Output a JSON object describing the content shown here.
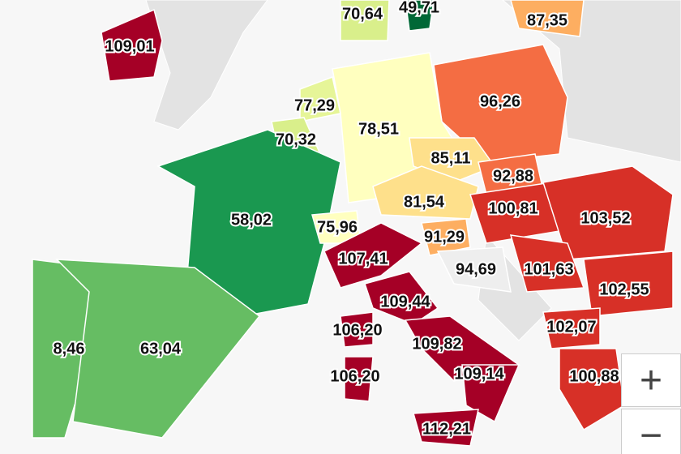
{
  "regions": [
    {
      "label": "109,01",
      "color": "#a50026"
    },
    {
      "label": "70,64",
      "color": "#d9ef8b"
    },
    {
      "label": "49,71",
      "color": "#006837"
    },
    {
      "label": "87,35",
      "color": "#fdae61"
    },
    {
      "label": "96,26",
      "color": "#f46d43"
    },
    {
      "label": "77,29",
      "color": "#e6f598"
    },
    {
      "label": "78,51",
      "color": "#ffffbf"
    },
    {
      "label": "70,32",
      "color": "#d9ef8b"
    },
    {
      "label": "85,11",
      "color": "#fee08b"
    },
    {
      "label": "92,88",
      "color": "#f46d43"
    },
    {
      "label": "58,02",
      "color": "#1a9850"
    },
    {
      "label": "81,54",
      "color": "#fee08b"
    },
    {
      "label": "100,81",
      "color": "#d73027"
    },
    {
      "label": "103,52",
      "color": "#d73027"
    },
    {
      "label": "75,96",
      "color": "#ffffbf"
    },
    {
      "label": "91,29",
      "color": "#fdae61"
    },
    {
      "label": "107,41",
      "color": "#a50026"
    },
    {
      "label": "94,69",
      "color": "#eeeeee"
    },
    {
      "label": "101,63",
      "color": "#d73027"
    },
    {
      "label": "102,55",
      "color": "#d73027"
    },
    {
      "label": "109,44",
      "color": "#a50026"
    },
    {
      "label": "106,20",
      "color": "#a50026"
    },
    {
      "label": "109,82",
      "color": "#a50026"
    },
    {
      "label": "102,07",
      "color": "#d73027"
    },
    {
      "label": "8,46",
      "color": "#66bd63"
    },
    {
      "label": "63,04",
      "color": "#66bd63"
    },
    {
      "label": "106,20",
      "color": "#a50026"
    },
    {
      "label": "109,14",
      "color": "#a50026"
    },
    {
      "label": "100,88",
      "color": "#d73027"
    },
    {
      "label": "112,21",
      "color": "#a50026"
    }
  ]
}
